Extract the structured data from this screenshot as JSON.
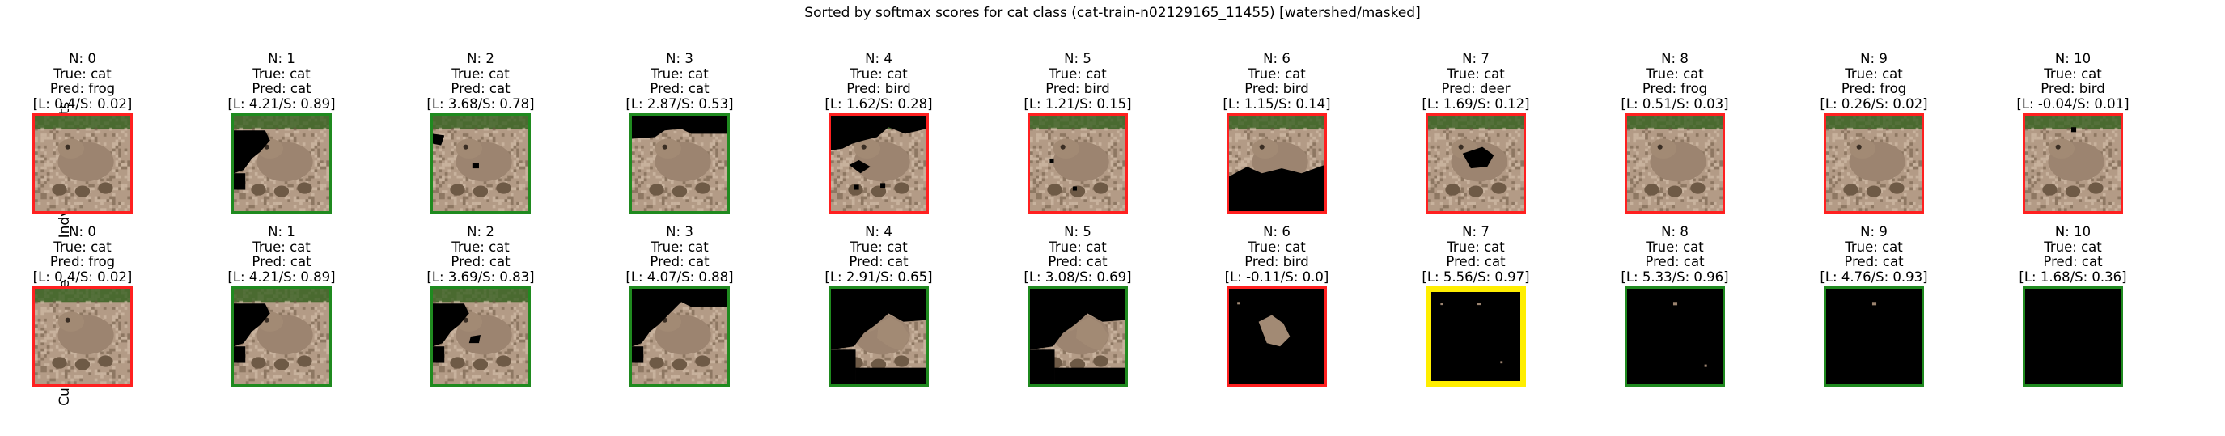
{
  "suptitle": "Sorted by softmax scores for cat class (cat-train-n02129165_11455) [watershed/masked]",
  "colors": {
    "correct_border": "#1f8a1f",
    "wrong_border": "#ff2020",
    "highlight_border": "#ffee00",
    "mask": "#000000",
    "photo_bg": "#b39b86",
    "photo_dark": "#6e5a46",
    "photo_light": "#d8c5b0",
    "photo_green": "#4a6a30"
  },
  "chart_data": {
    "type": "image-grid",
    "title": "Sorted by softmax scores for cat class (cat-train-n02129165_11455) [watershed/masked]",
    "rows": [
      {
        "label": "Indvidual Segments",
        "panels": [
          {
            "n": "N: 0",
            "true_label": "True: cat",
            "pred_label": "Pred: frog",
            "score_label": "[L: 0.4/S: 0.02]",
            "pred": "frog",
            "logit": 0.4,
            "softmax": 0.02,
            "border": "wrong",
            "mask": "none"
          },
          {
            "n": "N: 1",
            "true_label": "True: cat",
            "pred_label": "Pred: cat",
            "score_label": "[L: 4.21/S: 0.89]",
            "pred": "cat",
            "logit": 4.21,
            "softmax": 0.89,
            "border": "correct",
            "mask": "topleft"
          },
          {
            "n": "N: 2",
            "true_label": "True: cat",
            "pred_label": "Pred: cat",
            "score_label": "[L: 3.68/S: 0.78]",
            "pred": "cat",
            "logit": 3.68,
            "softmax": 0.78,
            "border": "correct",
            "mask": "small"
          },
          {
            "n": "N: 3",
            "true_label": "True: cat",
            "pred_label": "Pred: cat",
            "score_label": "[L: 2.87/S: 0.53]",
            "pred": "cat",
            "logit": 2.87,
            "softmax": 0.53,
            "border": "correct",
            "mask": "topband"
          },
          {
            "n": "N: 4",
            "true_label": "True: cat",
            "pred_label": "Pred: bird",
            "score_label": "[L: 1.62/S: 0.28]",
            "pred": "bird",
            "logit": 1.62,
            "softmax": 0.28,
            "border": "wrong",
            "mask": "outline"
          },
          {
            "n": "N: 5",
            "true_label": "True: cat",
            "pred_label": "Pred: bird",
            "score_label": "[L: 1.21/S: 0.15]",
            "pred": "bird",
            "logit": 1.21,
            "softmax": 0.15,
            "border": "wrong",
            "mask": "dots"
          },
          {
            "n": "N: 6",
            "true_label": "True: cat",
            "pred_label": "Pred: bird",
            "score_label": "[L: 1.15/S: 0.14]",
            "pred": "bird",
            "logit": 1.15,
            "softmax": 0.14,
            "border": "wrong",
            "mask": "bottom"
          },
          {
            "n": "N: 7",
            "true_label": "True: cat",
            "pred_label": "Pred: deer",
            "score_label": "[L: 1.69/S: 0.12]",
            "pred": "deer",
            "logit": 1.69,
            "softmax": 0.12,
            "border": "wrong",
            "mask": "center"
          },
          {
            "n": "N: 8",
            "true_label": "True: cat",
            "pred_label": "Pred: frog",
            "score_label": "[L: 0.51/S: 0.03]",
            "pred": "frog",
            "logit": 0.51,
            "softmax": 0.03,
            "border": "wrong",
            "mask": "none"
          },
          {
            "n": "N: 9",
            "true_label": "True: cat",
            "pred_label": "Pred: frog",
            "score_label": "[L: 0.26/S: 0.02]",
            "pred": "frog",
            "logit": 0.26,
            "softmax": 0.02,
            "border": "wrong",
            "mask": "none"
          },
          {
            "n": "N: 10",
            "true_label": "True: cat",
            "pred_label": "Pred: bird",
            "score_label": "[L: -0.04/S: 0.01]",
            "pred": "bird",
            "logit": -0.04,
            "softmax": 0.01,
            "border": "wrong",
            "mask": "tiny"
          }
        ]
      },
      {
        "label": "Cumulative Image",
        "panels": [
          {
            "n": "N: 0",
            "true_label": "True: cat",
            "pred_label": "Pred: frog",
            "score_label": "[L: 0.4/S: 0.02]",
            "pred": "frog",
            "logit": 0.4,
            "softmax": 0.02,
            "border": "wrong",
            "mask": "none"
          },
          {
            "n": "N: 1",
            "true_label": "True: cat",
            "pred_label": "Pred: cat",
            "score_label": "[L: 4.21/S: 0.89]",
            "pred": "cat",
            "logit": 4.21,
            "softmax": 0.89,
            "border": "correct",
            "mask": "topleft"
          },
          {
            "n": "N: 2",
            "true_label": "True: cat",
            "pred_label": "Pred: cat",
            "score_label": "[L: 3.69/S: 0.83]",
            "pred": "cat",
            "logit": 3.69,
            "softmax": 0.83,
            "border": "correct",
            "mask": "cum2"
          },
          {
            "n": "N: 3",
            "true_label": "True: cat",
            "pred_label": "Pred: cat",
            "score_label": "[L: 4.07/S: 0.88]",
            "pred": "cat",
            "logit": 4.07,
            "softmax": 0.88,
            "border": "correct",
            "mask": "cum3"
          },
          {
            "n": "N: 4",
            "true_label": "True: cat",
            "pred_label": "Pred: cat",
            "score_label": "[L: 2.91/S: 0.65]",
            "pred": "cat",
            "logit": 2.91,
            "softmax": 0.65,
            "border": "correct",
            "mask": "cum4"
          },
          {
            "n": "N: 5",
            "true_label": "True: cat",
            "pred_label": "Pred: cat",
            "score_label": "[L: 3.08/S: 0.69]",
            "pred": "cat",
            "logit": 3.08,
            "softmax": 0.69,
            "border": "correct",
            "mask": "cum5"
          },
          {
            "n": "N: 6",
            "true_label": "True: cat",
            "pred_label": "Pred: bird",
            "score_label": "[L: -0.11/S: 0.0]",
            "pred": "bird",
            "logit": -0.11,
            "softmax": 0.0,
            "border": "wrong",
            "mask": "cum6"
          },
          {
            "n": "N: 7",
            "true_label": "True: cat",
            "pred_label": "Pred: cat",
            "score_label": "[L: 5.56/S: 0.97]",
            "pred": "cat",
            "logit": 5.56,
            "softmax": 0.97,
            "border": "highlight",
            "mask": "cum7"
          },
          {
            "n": "N: 8",
            "true_label": "True: cat",
            "pred_label": "Pred: cat",
            "score_label": "[L: 5.33/S: 0.96]",
            "pred": "cat",
            "logit": 5.33,
            "softmax": 0.96,
            "border": "correct",
            "mask": "cum8"
          },
          {
            "n": "N: 9",
            "true_label": "True: cat",
            "pred_label": "Pred: cat",
            "score_label": "[L: 4.76/S: 0.93]",
            "pred": "cat",
            "logit": 4.76,
            "softmax": 0.93,
            "border": "correct",
            "mask": "cum9"
          },
          {
            "n": "N: 10",
            "true_label": "True: cat",
            "pred_label": "Pred: cat",
            "score_label": "[L: 1.68/S: 0.36]",
            "pred": "cat",
            "logit": 1.68,
            "softmax": 0.36,
            "border": "correct",
            "mask": "all"
          }
        ]
      }
    ]
  }
}
